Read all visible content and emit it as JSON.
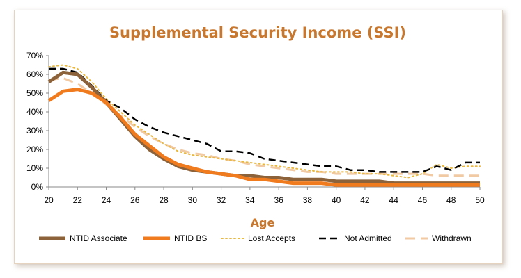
{
  "chart_data": {
    "type": "line",
    "title": "Supplemental Security Income (SSI)",
    "xlabel": "Age",
    "ylabel": "",
    "xlim": [
      20,
      50
    ],
    "ylim": [
      0,
      70
    ],
    "x_ticks": [
      "20",
      "22",
      "24",
      "26",
      "28",
      "30",
      "32",
      "34",
      "36",
      "38",
      "40",
      "42",
      "44",
      "46",
      "48",
      "50"
    ],
    "y_ticks": [
      "0%",
      "10%",
      "20%",
      "30%",
      "40%",
      "50%",
      "60%",
      "70%"
    ],
    "grid": false,
    "legend_position": "bottom",
    "x": [
      20,
      21,
      22,
      23,
      24,
      25,
      26,
      27,
      28,
      29,
      30,
      31,
      32,
      33,
      34,
      35,
      36,
      37,
      38,
      39,
      40,
      41,
      42,
      43,
      44,
      45,
      46,
      47,
      48,
      49,
      50
    ],
    "series": [
      {
        "name": "NTID Associate",
        "color": "#8b6239",
        "style": "solid-thick",
        "values": [
          56,
          61,
          60,
          53,
          45,
          36,
          27,
          20,
          15,
          11,
          9,
          8,
          7,
          6,
          6,
          5,
          5,
          4,
          4,
          4,
          3,
          3,
          3,
          3,
          2,
          2,
          2,
          2,
          2,
          2,
          2
        ]
      },
      {
        "name": "NTID BS",
        "color": "#f07b1e",
        "style": "solid-thick",
        "values": [
          46,
          51,
          52,
          50,
          45,
          37,
          28,
          22,
          16,
          12,
          10,
          8,
          7,
          6,
          4,
          4,
          3,
          2,
          2,
          2,
          1,
          1,
          1,
          1,
          1,
          1,
          1,
          1,
          1,
          1,
          1
        ]
      },
      {
        "name": "Lost Accepts",
        "color": "#e9b840",
        "style": "dotted",
        "values": [
          64,
          65,
          63,
          56,
          47,
          40,
          33,
          28,
          23,
          19,
          17,
          16,
          15,
          14,
          13,
          12,
          11,
          10,
          9,
          8,
          8,
          8,
          7,
          7,
          6,
          5,
          7,
          12,
          10,
          11,
          11
        ]
      },
      {
        "name": "Not Admitted",
        "color": "#000000",
        "style": "dashed",
        "values": [
          63,
          63,
          61,
          54,
          46,
          42,
          36,
          32,
          29,
          27,
          25,
          23,
          19,
          19,
          18,
          15,
          14,
          13,
          12,
          11,
          11,
          9,
          9,
          8,
          8,
          8,
          8,
          11,
          9,
          13,
          13
        ]
      },
      {
        "name": "Withdrawn",
        "color": "#f1c9a3",
        "style": "dashed-long",
        "values": [
          57,
          58,
          55,
          50,
          44,
          38,
          32,
          27,
          23,
          20,
          18,
          17,
          15,
          14,
          12,
          11,
          10,
          9,
          8,
          8,
          7,
          7,
          7,
          7,
          7,
          7,
          7,
          6,
          6,
          6,
          6
        ]
      }
    ]
  }
}
